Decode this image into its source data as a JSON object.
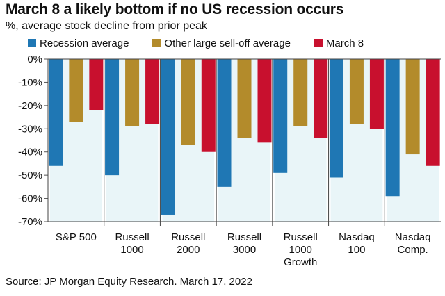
{
  "chart_data": {
    "type": "bar",
    "title": "March 8 a likely bottom if no US recession occurs",
    "subtitle": "%, average stock decline from prior peak",
    "categories": [
      [
        "S&P 500"
      ],
      [
        "Russell",
        "1000"
      ],
      [
        "Russell",
        "2000"
      ],
      [
        "Russell",
        "3000"
      ],
      [
        "Russell",
        "1000",
        "Growth"
      ],
      [
        "Nasdaq",
        "100"
      ],
      [
        "Nasdaq",
        "Comp."
      ]
    ],
    "series": [
      {
        "name": "Recession average",
        "color": "#1f77b4",
        "values": [
          -46,
          -50,
          -67,
          -55,
          -49,
          -51,
          -59
        ]
      },
      {
        "name": "Other large sell-off average",
        "color": "#b38b2b",
        "values": [
          -27,
          -29,
          -37,
          -34,
          -29,
          -28,
          -41
        ]
      },
      {
        "name": "March 8",
        "color": "#c8102e",
        "values": [
          -22,
          -28,
          -40,
          -36,
          -34,
          -30,
          -46
        ]
      }
    ],
    "ylim": [
      -70,
      0
    ],
    "yticks": [
      0,
      -10,
      -20,
      -30,
      -40,
      -50,
      -60,
      -70
    ],
    "ytick_labels": [
      "0%",
      "-10%",
      "-20%",
      "-30%",
      "-40%",
      "-50%",
      "-60%",
      "-70%"
    ],
    "source": "Source: JP Morgan Equity Research. March 17, 2022"
  }
}
